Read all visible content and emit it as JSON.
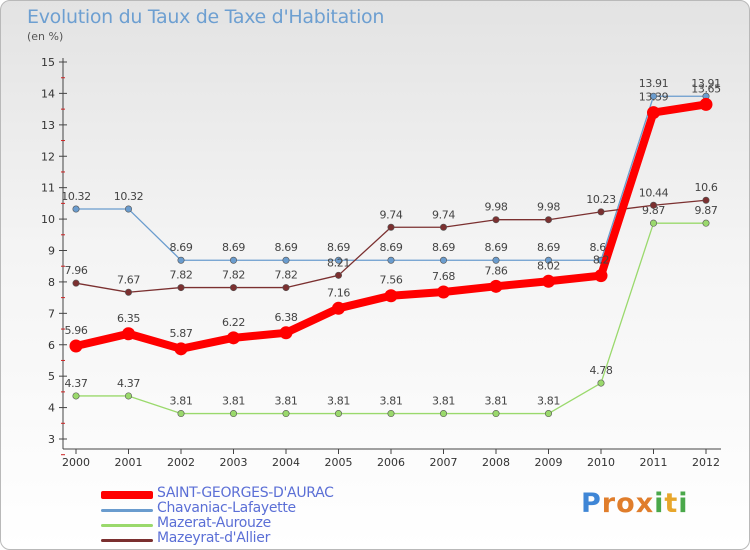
{
  "header": {
    "title": "Evolution du Taux de Taxe d'Habitation",
    "unit": "(en %)"
  },
  "chart_data": {
    "type": "line",
    "title": "Evolution du Taux de Taxe d'Habitation",
    "ylabel": "(en %)",
    "xlabel": "",
    "x": [
      "2000",
      "2001",
      "2002",
      "2003",
      "2004",
      "2005",
      "2006",
      "2007",
      "2008",
      "2009",
      "2010",
      "2011",
      "2012"
    ],
    "y_ticks": [
      "3",
      "4",
      "5",
      "6",
      "7",
      "8",
      "9",
      "10",
      "11",
      "12",
      "13",
      "14",
      "15"
    ],
    "ylim": [
      3,
      15
    ],
    "grid": false,
    "legend_position": "bottom",
    "series": [
      {
        "name": "SAINT-GEORGES-D'AURAC",
        "color": "#ff0000",
        "emphasis": true,
        "values": [
          5.96,
          6.35,
          5.87,
          6.22,
          6.38,
          7.16,
          7.56,
          7.68,
          7.86,
          8.02,
          8.2,
          13.39,
          13.65
        ],
        "labels": [
          "5.96",
          "6.35",
          "5.87",
          "6.22",
          "6.38",
          "7.16",
          "7.56",
          "7.68",
          "7.86",
          "8.02",
          "8.2",
          "13.39",
          "13.65"
        ]
      },
      {
        "name": "Chavaniac-Lafayette",
        "color": "#6a9cce",
        "values": [
          10.32,
          10.32,
          8.69,
          8.69,
          8.69,
          8.69,
          8.69,
          8.69,
          8.69,
          8.69,
          8.69,
          13.91,
          13.91
        ],
        "labels": [
          "10.32",
          "10.32",
          "8.69",
          "8.69",
          "8.69",
          "8.69",
          "8.69",
          "8.69",
          "8.69",
          "8.69",
          "8.69",
          "13.91",
          "13.91"
        ]
      },
      {
        "name": "Mazerat-Aurouze",
        "color": "#9ad96c",
        "values": [
          4.37,
          4.37,
          3.81,
          3.81,
          3.81,
          3.81,
          3.81,
          3.81,
          3.81,
          3.81,
          4.78,
          9.87,
          9.87
        ],
        "labels": [
          "4.37",
          "4.37",
          "3.81",
          "3.81",
          "3.81",
          "3.81",
          "3.81",
          "3.81",
          "3.81",
          "3.81",
          "4.78",
          "9.87",
          "9.87"
        ]
      },
      {
        "name": "Mazeyrat-d'Allier",
        "color": "#7b3030",
        "values": [
          7.96,
          7.67,
          7.82,
          7.82,
          7.82,
          8.21,
          9.74,
          9.74,
          9.98,
          9.98,
          10.23,
          10.44,
          10.6
        ],
        "labels": [
          "7.96",
          "7.67",
          "7.82",
          "7.82",
          "7.82",
          "8.21",
          "9.74",
          "9.74",
          "9.98",
          "9.98",
          "10.23",
          "10.44",
          "10.6"
        ]
      }
    ]
  },
  "logo": {
    "letters": [
      "P",
      "r",
      "o",
      "x",
      "i",
      "t",
      "i"
    ],
    "colors": [
      "#3f86d6",
      "#e07d2b",
      "#e07d2b",
      "#e07d2b",
      "#4aa84a",
      "#e7a62b",
      "#4aa84a"
    ]
  }
}
